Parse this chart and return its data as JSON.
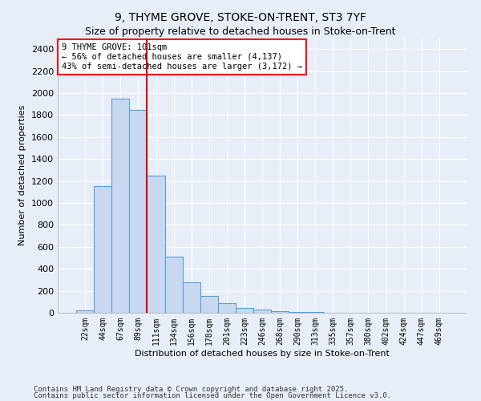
{
  "title": "9, THYME GROVE, STOKE-ON-TRENT, ST3 7YF",
  "subtitle": "Size of property relative to detached houses in Stoke-on-Trent",
  "xlabel": "Distribution of detached houses by size in Stoke-on-Trent",
  "ylabel": "Number of detached properties",
  "bar_labels": [
    "22sqm",
    "44sqm",
    "67sqm",
    "89sqm",
    "111sqm",
    "134sqm",
    "156sqm",
    "178sqm",
    "201sqm",
    "223sqm",
    "246sqm",
    "268sqm",
    "290sqm",
    "313sqm",
    "335sqm",
    "357sqm",
    "380sqm",
    "402sqm",
    "424sqm",
    "447sqm",
    "469sqm"
  ],
  "bar_values": [
    25,
    1150,
    1950,
    1850,
    1250,
    510,
    275,
    155,
    85,
    45,
    30,
    15,
    8,
    5,
    3,
    2,
    2,
    1,
    1,
    1,
    1
  ],
  "bar_color": "#c8d8f0",
  "bar_edge_color": "#5a9fd4",
  "vline_x": 3.5,
  "vline_color": "#cc0000",
  "annotation_text": "9 THYME GROVE: 101sqm\n← 56% of detached houses are smaller (4,137)\n43% of semi-detached houses are larger (3,172) →",
  "ylim": [
    0,
    2500
  ],
  "yticks": [
    0,
    200,
    400,
    600,
    800,
    1000,
    1200,
    1400,
    1600,
    1800,
    2000,
    2200,
    2400
  ],
  "footnote1": "Contains HM Land Registry data © Crown copyright and database right 2025.",
  "footnote2": "Contains public sector information licensed under the Open Government Licence v3.0.",
  "background_color": "#e8eef8",
  "title_fontsize": 10,
  "subtitle_fontsize": 9
}
